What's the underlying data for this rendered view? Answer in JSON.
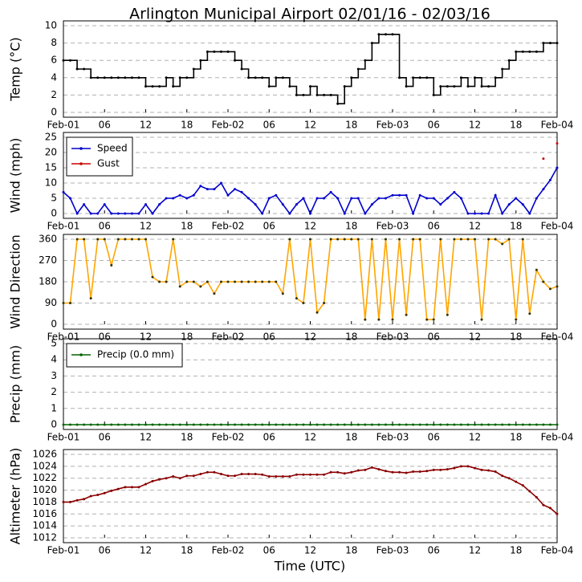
{
  "chart_data": [
    {
      "type": "line",
      "title": "Arlington Municipal Airport 02/01/16 - 02/03/16",
      "ylabel": "Temp (°C)",
      "step": true,
      "markers": true,
      "grid": true,
      "x": [
        0,
        1,
        2,
        3,
        4,
        5,
        6,
        7,
        8,
        9,
        10,
        11,
        12,
        13,
        14,
        15,
        16,
        17,
        18,
        19,
        20,
        21,
        22,
        23,
        24,
        25,
        26,
        27,
        28,
        29,
        30,
        31,
        32,
        33,
        34,
        35,
        36,
        37,
        38,
        39,
        40,
        41,
        42,
        43,
        44,
        45,
        46,
        47,
        48,
        49,
        50,
        51,
        52,
        53,
        54,
        55,
        56,
        57,
        58,
        59,
        60,
        61,
        62,
        63,
        64,
        65,
        66,
        67,
        68,
        69,
        70,
        71,
        72
      ],
      "xlim": [
        0,
        72
      ],
      "xticks": [
        {
          "value": 0,
          "label": "Feb-01"
        },
        {
          "value": 6,
          "label": "06"
        },
        12,
        18,
        {
          "value": 24,
          "label": "Feb-02"
        },
        {
          "value": 30,
          "label": "06"
        },
        {
          "value": 36,
          "label": "12"
        },
        {
          "value": 42,
          "label": "18"
        },
        {
          "value": 48,
          "label": "Feb-03"
        },
        {
          "value": 54,
          "label": "06"
        },
        {
          "value": 60,
          "label": "12"
        },
        {
          "value": 66,
          "label": "18"
        },
        {
          "value": 72,
          "label": "Feb-04"
        }
      ],
      "ylim": [
        0,
        10
      ],
      "yticks": [
        0,
        2,
        4,
        6,
        8,
        10
      ],
      "series": [
        {
          "name": "Temp",
          "color": "#000000",
          "values": [
            6,
            6,
            5,
            5,
            4,
            4,
            4,
            4,
            4,
            4,
            4,
            4,
            3,
            3,
            3,
            4,
            3,
            4,
            4,
            5,
            6,
            7,
            7,
            7,
            7,
            6,
            5,
            4,
            4,
            4,
            3,
            4,
            4,
            3,
            2,
            2,
            3,
            2,
            2,
            2,
            1,
            3,
            4,
            5,
            6,
            8,
            9,
            9,
            9,
            4,
            3,
            4,
            4,
            4,
            2,
            3,
            3,
            3,
            4,
            3,
            4,
            3,
            3,
            4,
            5,
            6,
            7,
            7,
            7,
            7,
            8,
            8,
            8
          ]
        }
      ]
    },
    {
      "type": "line",
      "ylabel": "Wind (mph)",
      "markers": true,
      "grid": true,
      "legend": "upper left",
      "x": [
        0,
        1,
        2,
        3,
        4,
        5,
        6,
        7,
        8,
        9,
        10,
        11,
        12,
        13,
        14,
        15,
        16,
        17,
        18,
        19,
        20,
        21,
        22,
        23,
        24,
        25,
        26,
        27,
        28,
        29,
        30,
        31,
        32,
        33,
        34,
        35,
        36,
        37,
        38,
        39,
        40,
        41,
        42,
        43,
        44,
        45,
        46,
        47,
        48,
        49,
        50,
        51,
        52,
        53,
        54,
        55,
        56,
        57,
        58,
        59,
        60,
        61,
        62,
        63,
        64,
        65,
        66,
        67,
        68,
        69,
        70,
        71,
        72
      ],
      "xlim": [
        0,
        72
      ],
      "xticks": [
        {
          "value": 0,
          "label": "Feb-01"
        },
        {
          "value": 6,
          "label": "06"
        },
        12,
        18,
        {
          "value": 24,
          "label": "Feb-02"
        },
        {
          "value": 30,
          "label": "06"
        },
        {
          "value": 36,
          "label": "12"
        },
        {
          "value": 42,
          "label": "18"
        },
        {
          "value": 48,
          "label": "Feb-03"
        },
        {
          "value": 54,
          "label": "06"
        },
        {
          "value": 60,
          "label": "12"
        },
        {
          "value": 66,
          "label": "18"
        },
        {
          "value": 72,
          "label": "Feb-04"
        }
      ],
      "ylim": [
        0,
        25
      ],
      "yticks": [
        0,
        5,
        10,
        15,
        20,
        25
      ],
      "series": [
        {
          "name": "Speed",
          "color": "#0000cc",
          "values": [
            7,
            5,
            0,
            3,
            0,
            0,
            3,
            0,
            0,
            0,
            0,
            0,
            3,
            0,
            3,
            5,
            5,
            6,
            5,
            6,
            9,
            8,
            8,
            10,
            6,
            8,
            7,
            5,
            3,
            0,
            5,
            6,
            3,
            0,
            3,
            5,
            0,
            5,
            5,
            7,
            5,
            0,
            5,
            5,
            0,
            3,
            5,
            5,
            6,
            6,
            6,
            0,
            6,
            5,
            5,
            3,
            5,
            7,
            5,
            0,
            0,
            0,
            0,
            6,
            0,
            3,
            5,
            3,
            0,
            5,
            8,
            11,
            15
          ]
        },
        {
          "name": "Gust",
          "color": "#cc0000",
          "values": [
            null,
            null,
            null,
            null,
            null,
            null,
            null,
            null,
            null,
            null,
            null,
            null,
            null,
            null,
            null,
            null,
            null,
            null,
            null,
            null,
            null,
            null,
            null,
            null,
            null,
            null,
            null,
            null,
            null,
            null,
            null,
            null,
            null,
            null,
            null,
            null,
            null,
            null,
            null,
            null,
            null,
            null,
            null,
            null,
            null,
            null,
            null,
            null,
            null,
            null,
            null,
            null,
            null,
            null,
            null,
            null,
            null,
            null,
            null,
            null,
            null,
            null,
            null,
            null,
            null,
            null,
            null,
            null,
            null,
            null,
            18,
            null,
            23
          ]
        }
      ]
    },
    {
      "type": "line",
      "ylabel": "Wind Direction",
      "markers": true,
      "marker_color": "#333300",
      "grid": true,
      "x": [
        0,
        1,
        2,
        3,
        4,
        5,
        6,
        7,
        8,
        9,
        10,
        11,
        12,
        13,
        14,
        15,
        16,
        17,
        18,
        19,
        20,
        21,
        22,
        23,
        24,
        25,
        26,
        27,
        28,
        29,
        30,
        31,
        32,
        33,
        34,
        35,
        36,
        37,
        38,
        39,
        40,
        41,
        42,
        43,
        44,
        45,
        46,
        47,
        48,
        49,
        50,
        51,
        52,
        53,
        54,
        55,
        56,
        57,
        58,
        59,
        60,
        61,
        62,
        63,
        64,
        65,
        66,
        67,
        68,
        69,
        70,
        71,
        72
      ],
      "xlim": [
        0,
        72
      ],
      "xticks": [
        {
          "value": 0,
          "label": "Feb-01"
        },
        {
          "value": 6,
          "label": "06"
        },
        12,
        18,
        {
          "value": 24,
          "label": "Feb-02"
        },
        {
          "value": 30,
          "label": "06"
        },
        {
          "value": 36,
          "label": "12"
        },
        {
          "value": 42,
          "label": "18"
        },
        {
          "value": 48,
          "label": "Feb-03"
        },
        {
          "value": 54,
          "label": "06"
        },
        {
          "value": 60,
          "label": "12"
        },
        {
          "value": 66,
          "label": "18"
        },
        {
          "value": 72,
          "label": "Feb-04"
        }
      ],
      "ylim": [
        0,
        360
      ],
      "yticks": [
        0,
        90,
        180,
        270,
        360
      ],
      "series": [
        {
          "name": "Direction",
          "color": "#ffa500",
          "values": [
            90,
            90,
            360,
            360,
            110,
            360,
            360,
            250,
            360,
            360,
            360,
            360,
            360,
            200,
            180,
            180,
            360,
            160,
            180,
            180,
            160,
            180,
            130,
            180,
            180,
            180,
            180,
            180,
            180,
            180,
            180,
            180,
            130,
            360,
            110,
            90,
            360,
            50,
            90,
            360,
            360,
            360,
            360,
            360,
            20,
            360,
            20,
            360,
            20,
            360,
            40,
            360,
            360,
            20,
            20,
            360,
            40,
            360,
            360,
            360,
            360,
            20,
            360,
            360,
            340,
            360,
            20,
            360,
            45,
            230,
            180,
            150,
            160
          ]
        }
      ]
    },
    {
      "type": "line",
      "ylabel": "Precip (mm)",
      "markers": true,
      "grid": true,
      "legend": "upper left",
      "x": [
        0,
        1,
        2,
        3,
        4,
        5,
        6,
        7,
        8,
        9,
        10,
        11,
        12,
        13,
        14,
        15,
        16,
        17,
        18,
        19,
        20,
        21,
        22,
        23,
        24,
        25,
        26,
        27,
        28,
        29,
        30,
        31,
        32,
        33,
        34,
        35,
        36,
        37,
        38,
        39,
        40,
        41,
        42,
        43,
        44,
        45,
        46,
        47,
        48,
        49,
        50,
        51,
        52,
        53,
        54,
        55,
        56,
        57,
        58,
        59,
        60,
        61,
        62,
        63,
        64,
        65,
        66,
        67,
        68,
        69,
        70,
        71,
        72
      ],
      "xlim": [
        0,
        72
      ],
      "xticks": [
        {
          "value": 0,
          "label": "Feb-01"
        },
        {
          "value": 6,
          "label": "06"
        },
        12,
        18,
        {
          "value": 24,
          "label": "Feb-02"
        },
        {
          "value": 30,
          "label": "06"
        },
        {
          "value": 36,
          "label": "12"
        },
        {
          "value": 42,
          "label": "18"
        },
        {
          "value": 48,
          "label": "Feb-03"
        },
        {
          "value": 54,
          "label": "06"
        },
        {
          "value": 60,
          "label": "12"
        },
        {
          "value": 66,
          "label": "18"
        },
        {
          "value": 72,
          "label": "Feb-04"
        }
      ],
      "ylim": [
        0,
        5
      ],
      "yticks": [
        0,
        1,
        2,
        3,
        4,
        5
      ],
      "series": [
        {
          "name": "Precip (0.0 mm)",
          "color": "#006400",
          "values": [
            0,
            0,
            0,
            0,
            0,
            0,
            0,
            0,
            0,
            0,
            0,
            0,
            0,
            0,
            0,
            0,
            0,
            0,
            0,
            0,
            0,
            0,
            0,
            0,
            0,
            0,
            0,
            0,
            0,
            0,
            0,
            0,
            0,
            0,
            0,
            0,
            0,
            0,
            0,
            0,
            0,
            0,
            0,
            0,
            0,
            0,
            0,
            0,
            0,
            0,
            0,
            0,
            0,
            0,
            0,
            0,
            0,
            0,
            0,
            0,
            0,
            0,
            0,
            0,
            0,
            0,
            0,
            0,
            0,
            0,
            0,
            0,
            0
          ]
        }
      ]
    },
    {
      "type": "line",
      "ylabel": "Altimeter (hPa)",
      "xlabel": "Time (UTC)",
      "markers": true,
      "grid": true,
      "x": [
        0,
        1,
        2,
        3,
        4,
        5,
        6,
        7,
        8,
        9,
        10,
        11,
        12,
        13,
        14,
        15,
        16,
        17,
        18,
        19,
        20,
        21,
        22,
        23,
        24,
        25,
        26,
        27,
        28,
        29,
        30,
        31,
        32,
        33,
        34,
        35,
        36,
        37,
        38,
        39,
        40,
        41,
        42,
        43,
        44,
        45,
        46,
        47,
        48,
        49,
        50,
        51,
        52,
        53,
        54,
        55,
        56,
        57,
        58,
        59,
        60,
        61,
        62,
        63,
        64,
        65,
        66,
        67,
        68,
        69,
        70,
        71,
        72
      ],
      "xlim": [
        0,
        72
      ],
      "xticks": [
        {
          "value": 0,
          "label": "Feb-01"
        },
        {
          "value": 6,
          "label": "06"
        },
        12,
        18,
        {
          "value": 24,
          "label": "Feb-02"
        },
        {
          "value": 30,
          "label": "06"
        },
        {
          "value": 36,
          "label": "12"
        },
        {
          "value": 42,
          "label": "18"
        },
        {
          "value": 48,
          "label": "Feb-03"
        },
        {
          "value": 54,
          "label": "06"
        },
        {
          "value": 60,
          "label": "12"
        },
        {
          "value": 66,
          "label": "18"
        },
        {
          "value": 72,
          "label": "Feb-04"
        }
      ],
      "ylim": [
        1012,
        1026
      ],
      "yticks": [
        1012,
        1014,
        1016,
        1018,
        1020,
        1022,
        1024,
        1026
      ],
      "series": [
        {
          "name": "Altimeter",
          "color": "#8b0000",
          "values": [
            1018,
            1018,
            1018.3,
            1018.5,
            1019,
            1019.2,
            1019.5,
            1019.9,
            1020.2,
            1020.5,
            1020.5,
            1020.5,
            1021,
            1021.5,
            1021.8,
            1022,
            1022.3,
            1022,
            1022.4,
            1022.4,
            1022.7,
            1023,
            1023,
            1022.7,
            1022.4,
            1022.4,
            1022.7,
            1022.7,
            1022.7,
            1022.6,
            1022.3,
            1022.3,
            1022.3,
            1022.3,
            1022.6,
            1022.6,
            1022.6,
            1022.6,
            1022.6,
            1023,
            1023,
            1022.8,
            1023,
            1023.3,
            1023.4,
            1023.8,
            1023.5,
            1023.2,
            1023,
            1023,
            1022.9,
            1023.1,
            1023.1,
            1023.2,
            1023.4,
            1023.4,
            1023.5,
            1023.7,
            1024,
            1024,
            1023.7,
            1023.4,
            1023.3,
            1023.1,
            1022.4,
            1022,
            1021.4,
            1020.8,
            1019.8,
            1018.8,
            1017.5,
            1017,
            1016
          ]
        }
      ]
    }
  ]
}
